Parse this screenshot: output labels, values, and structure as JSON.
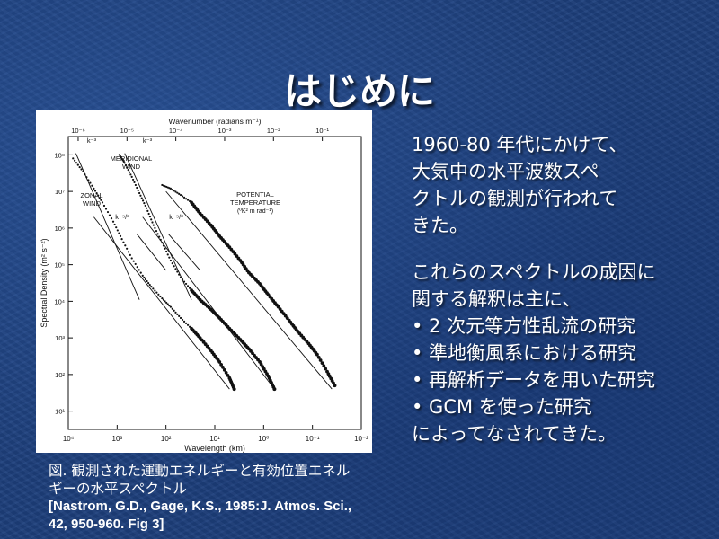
{
  "slide": {
    "title": "はじめに",
    "paragraph1": [
      "1960-80 年代にかけて、",
      "大気中の水平波数スペ",
      "クトルの観測が行われて",
      "きた。"
    ],
    "paragraph2": [
      "これらのスペクトルの成因に",
      "関する解釈は主に、"
    ],
    "bullets": [
      "• 2 次元等方性乱流の研究",
      "• 準地衡風系における研究",
      "• 再解析データを用いた研究",
      "• GCM を使った研究"
    ],
    "closing": "によってなされてきた。"
  },
  "caption": {
    "line1": "図. 観測された運動エネルギーと有効位置エネル",
    "line2": "ギーの水平スペクトル",
    "ref1": "[Nastrom, G.D., Gage, K.S., 1985:J. Atmos. Sci.,",
    "ref2": "42, 950-960. Fig 3]"
  },
  "chart_data": {
    "type": "scatter",
    "xlabel": "Wavelength (km)",
    "x2label": "Wavenumber (radians m⁻¹)",
    "ylabel": "Spectral Density (m² s⁻²)",
    "x_scale": "log-reversed",
    "y_scale": "log",
    "x_ticks": [
      "10⁴",
      "10³",
      "10²",
      "10¹",
      "10⁰",
      "10⁻¹",
      "10⁻²"
    ],
    "x2_ticks": [
      "10⁻⁶",
      "10⁻⁵",
      "10⁻⁴",
      "10⁻³",
      "10⁻²",
      "10⁻¹"
    ],
    "y_ticks": [
      "10⁸",
      "10⁷",
      "10⁶",
      "10⁵",
      "10⁴",
      "10³",
      "10²",
      "10¹"
    ],
    "annotations": [
      "k⁻³",
      "k⁻³",
      "k⁻⁵/³",
      "k⁻⁵/³",
      "MERIDIONAL",
      "WIND",
      "ZONAL",
      "WIND",
      "POTENTIAL",
      "TEMPERATURE",
      "(ºK² m rad⁻¹)"
    ],
    "series": [
      {
        "points": [
          [
            8000,
            80000000.0
          ],
          [
            5000,
            35000000.0
          ],
          [
            3000,
            12000000.0
          ],
          [
            2000,
            5000000.0
          ],
          [
            1200,
            1500000.0
          ],
          [
            800,
            500000.0
          ],
          [
            500,
            150000.0
          ],
          [
            300,
            50000.0
          ],
          [
            200,
            25000.0
          ],
          [
            120,
            12000.0
          ],
          [
            80,
            7000.0
          ],
          [
            50,
            3500.0
          ],
          [
            30,
            1800.0
          ],
          [
            20,
            1000.0
          ],
          [
            12,
            450
          ],
          [
            8,
            220
          ],
          [
            5,
            80
          ],
          [
            4,
            40
          ]
        ]
      },
      {
        "points": [
          [
            900,
            100000000.0
          ],
          [
            700,
            60000000.0
          ],
          [
            500,
            25000000.0
          ],
          [
            350,
            9000000.0
          ],
          [
            250,
            3500000.0
          ],
          [
            180,
            1200000.0
          ],
          [
            120,
            400000.0
          ],
          [
            80,
            130000.0
          ],
          [
            50,
            45000.0
          ],
          [
            30,
            20000.0
          ],
          [
            20,
            11000.0
          ],
          [
            12,
            6000.0
          ],
          [
            8,
            3500.0
          ],
          [
            5,
            1800.0
          ],
          [
            3,
            900
          ],
          [
            2,
            500
          ],
          [
            1.2,
            220
          ],
          [
            0.8,
            90
          ],
          [
            0.6,
            40
          ]
        ]
      },
      {
        "points": [
          [
            120,
            15000000.0
          ],
          [
            80,
            12000000.0
          ],
          [
            50,
            8000000.0
          ],
          [
            30,
            5000000.0
          ],
          [
            20,
            2500000.0
          ],
          [
            12,
            1200000.0
          ],
          [
            8,
            600000.0
          ],
          [
            5,
            300000.0
          ],
          [
            3,
            130000.0
          ],
          [
            2,
            60000.0
          ],
          [
            1.2,
            30000.0
          ],
          [
            0.8,
            15000.0
          ],
          [
            0.5,
            7000.0
          ],
          [
            0.3,
            3000.0
          ],
          [
            0.2,
            1500.0
          ],
          [
            0.12,
            700
          ],
          [
            0.08,
            350
          ],
          [
            0.05,
            120
          ],
          [
            0.035,
            50
          ]
        ]
      }
    ]
  }
}
